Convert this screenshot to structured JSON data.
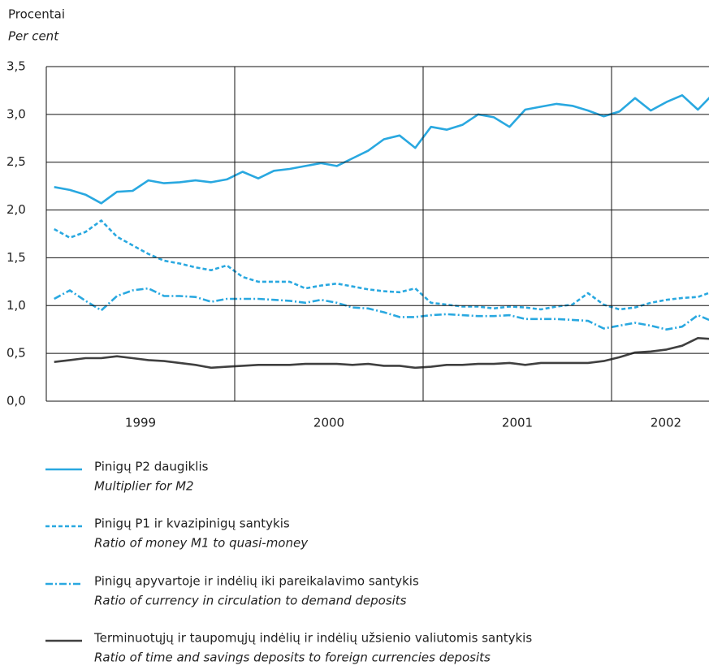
{
  "chart_data": {
    "type": "line",
    "ylabel": "Procentai",
    "ylabel_en": "Per cent",
    "categories": [
      null,
      null,
      null,
      null,
      null,
      null,
      null,
      null,
      null,
      null,
      null,
      null,
      null,
      null,
      null,
      null,
      null,
      null,
      null,
      null,
      null,
      null,
      null,
      null,
      null,
      null,
      null,
      null,
      null,
      null,
      null,
      null,
      null,
      null,
      null,
      null,
      null,
      null,
      null,
      null,
      null,
      null,
      null
    ],
    "x_groups": [
      {
        "label": "1999",
        "count": 12
      },
      {
        "label": "2000",
        "count": 12
      },
      {
        "label": "2001",
        "count": 12
      },
      {
        "label": "2002",
        "count": 7
      }
    ],
    "ylim": [
      0,
      3.5
    ],
    "yticks": [
      {
        "value": 0,
        "label": "0,0"
      },
      {
        "value": 0.5,
        "label": "0,5"
      },
      {
        "value": 1,
        "label": "1,0"
      },
      {
        "value": 1.5,
        "label": "1,5"
      },
      {
        "value": 2,
        "label": "2,0"
      },
      {
        "value": 2.5,
        "label": "2,5"
      },
      {
        "value": 3,
        "label": "3,0"
      },
      {
        "value": 3.5,
        "label": "3,5"
      }
    ],
    "grid": true,
    "series": [
      {
        "name": "Pinigų P2 daugiklis",
        "name_en": "Multiplier for M2",
        "color": "#29a8e0",
        "dash": "solid",
        "values": [
          2.24,
          2.21,
          2.16,
          2.07,
          2.19,
          2.2,
          2.31,
          2.28,
          2.29,
          2.31,
          2.29,
          2.32,
          2.4,
          2.33,
          2.41,
          2.43,
          2.46,
          2.49,
          2.46,
          2.54,
          2.62,
          2.74,
          2.78,
          2.65,
          2.87,
          2.84,
          2.89,
          3.0,
          2.97,
          2.87,
          3.05,
          3.08,
          3.11,
          3.09,
          3.04,
          2.98,
          3.03,
          3.17,
          3.04,
          3.13,
          3.2,
          3.05,
          3.22
        ]
      },
      {
        "name": "Pinigų P1 ir kvazipinigų santykis",
        "name_en": "Ratio of money M1 to quasi-money",
        "color": "#29a8e0",
        "dash": "dashed",
        "values": [
          1.8,
          1.71,
          1.77,
          1.89,
          1.72,
          1.63,
          1.54,
          1.47,
          1.44,
          1.4,
          1.37,
          1.42,
          1.3,
          1.25,
          1.25,
          1.25,
          1.18,
          1.21,
          1.23,
          1.2,
          1.17,
          1.15,
          1.14,
          1.18,
          1.03,
          1.01,
          0.99,
          0.99,
          0.97,
          0.99,
          0.98,
          0.96,
          0.99,
          1.01,
          1.13,
          1.01,
          0.96,
          0.98,
          1.03,
          1.06,
          1.08,
          1.09,
          1.15
        ]
      },
      {
        "name": "Pinigų apyvartoje ir indėlių iki pareikalavimo santykis",
        "name_en": "Ratio of currency in circulation to demand deposits",
        "color": "#29a8e0",
        "dash": "dashdot",
        "values": [
          1.07,
          1.16,
          1.05,
          0.95,
          1.1,
          1.16,
          1.18,
          1.1,
          1.1,
          1.09,
          1.04,
          1.07,
          1.07,
          1.07,
          1.06,
          1.05,
          1.03,
          1.06,
          1.03,
          0.98,
          0.97,
          0.93,
          0.88,
          0.88,
          0.9,
          0.91,
          0.9,
          0.89,
          0.89,
          0.9,
          0.86,
          0.86,
          0.86,
          0.85,
          0.84,
          0.76,
          0.79,
          0.82,
          0.79,
          0.75,
          0.78,
          0.9,
          0.83
        ]
      },
      {
        "name": "Terminuotųjų ir taupomųjų indėlių ir indėlių užsienio valiutomis santykis",
        "name_en": "Ratio of time and savings deposits to foreign currencies deposits",
        "color": "#404040",
        "dash": "solid",
        "values": [
          0.41,
          0.43,
          0.45,
          0.45,
          0.47,
          0.45,
          0.43,
          0.42,
          0.4,
          0.38,
          0.35,
          0.36,
          0.37,
          0.38,
          0.38,
          0.38,
          0.39,
          0.39,
          0.39,
          0.38,
          0.39,
          0.37,
          0.37,
          0.35,
          0.36,
          0.38,
          0.38,
          0.39,
          0.39,
          0.4,
          0.38,
          0.4,
          0.4,
          0.4,
          0.4,
          0.42,
          0.46,
          0.51,
          0.52,
          0.54,
          0.58,
          0.66,
          0.65
        ]
      }
    ]
  }
}
